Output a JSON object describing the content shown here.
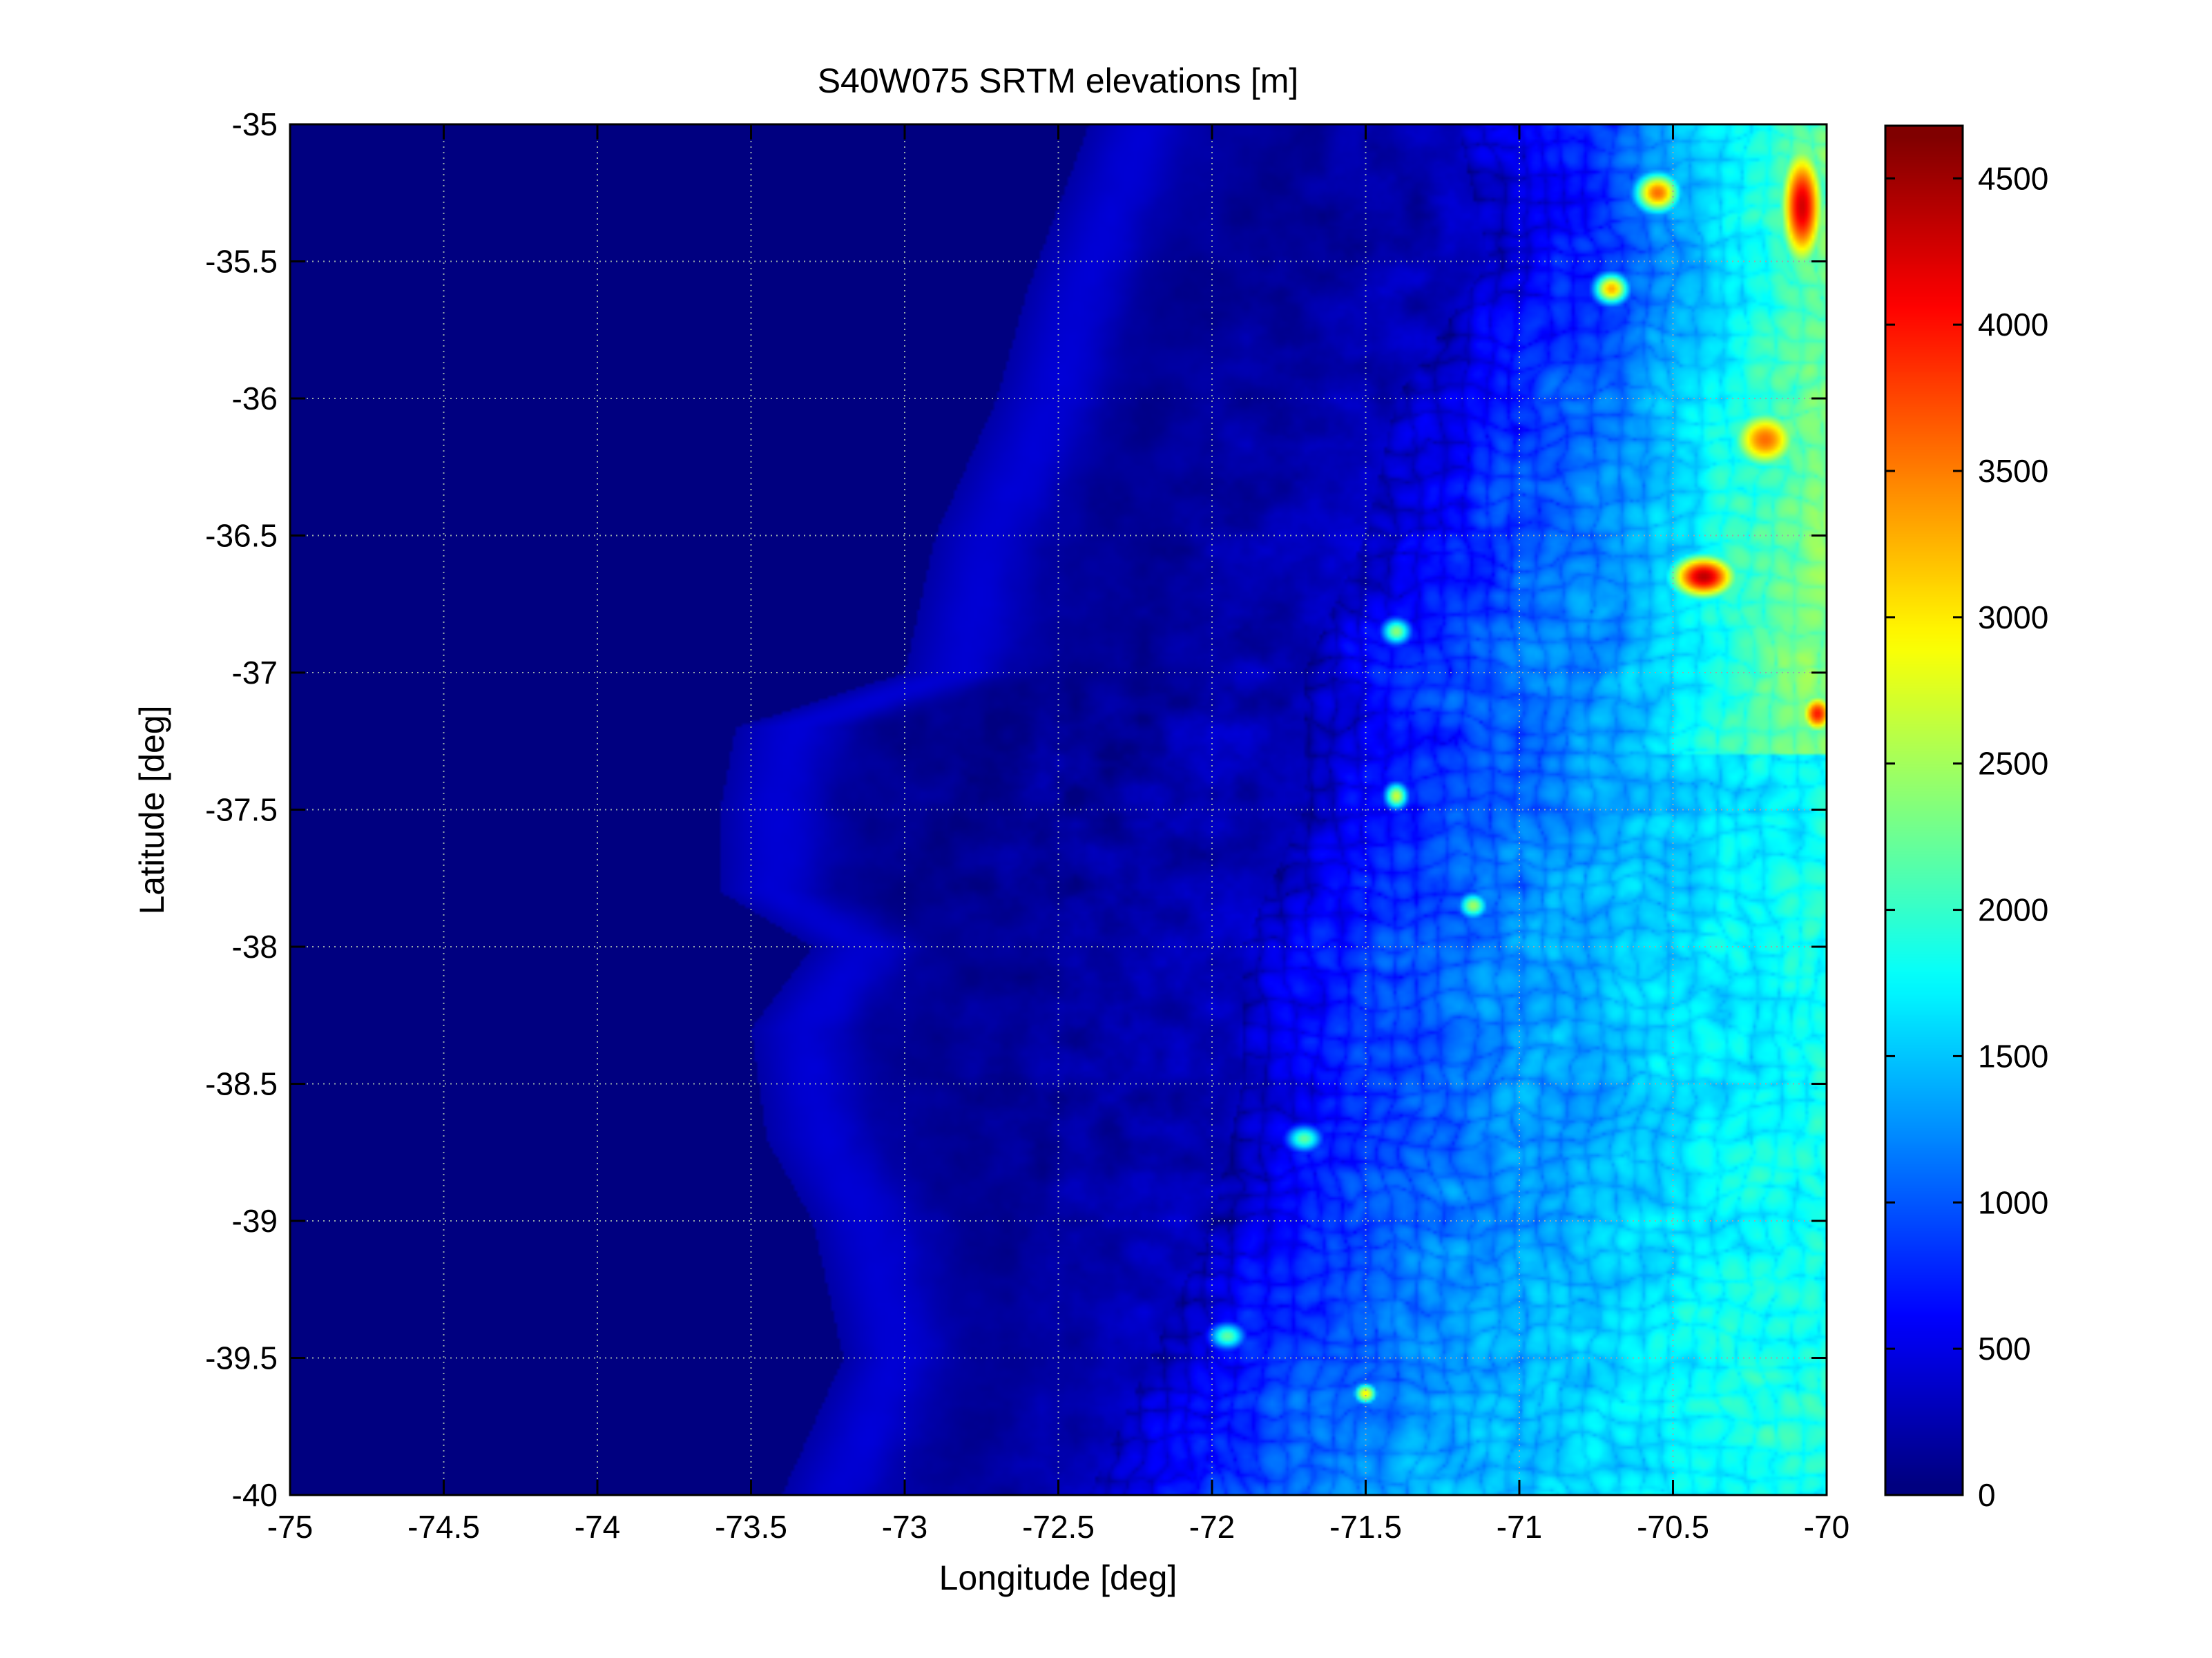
{
  "chart_data": {
    "type": "heatmap",
    "title": "S40W075 SRTM elevations [m]",
    "xlabel": "Longitude [deg]",
    "ylabel": "Latitude [deg]",
    "xlim": [
      -75,
      -70
    ],
    "ylim": [
      -40,
      -35
    ],
    "xticks": [
      -75,
      -74.5,
      -74,
      -73.5,
      -73,
      -72.5,
      -72,
      -71.5,
      -71,
      -70.5,
      -70
    ],
    "xtick_labels": [
      "-75",
      "-74.5",
      "-74",
      "-73.5",
      "-73",
      "-72.5",
      "-72",
      "-71.5",
      "-71",
      "-70.5",
      "-70"
    ],
    "yticks": [
      -35,
      -35.5,
      -36,
      -36.5,
      -37,
      -37.5,
      -38,
      -38.5,
      -39,
      -39.5,
      -40
    ],
    "ytick_labels": [
      "-35",
      "-35.5",
      "-36",
      "-36.5",
      "-37",
      "-37.5",
      "-38",
      "-38.5",
      "-39",
      "-39.5",
      "-40"
    ],
    "grid": true,
    "colormap": "jet",
    "colorbar": {
      "clim": [
        0,
        4680
      ],
      "ticks": [
        0,
        500,
        1000,
        1500,
        2000,
        2500,
        3000,
        3500,
        4000,
        4500
      ],
      "tick_labels": [
        "0",
        "500",
        "1000",
        "1500",
        "2000",
        "2500",
        "3000",
        "3500",
        "4000",
        "4500"
      ],
      "location": "right"
    },
    "coastline_lon_by_lat": [
      [
        -35.0,
        -72.4
      ],
      [
        -35.3,
        -72.5
      ],
      [
        -35.6,
        -72.6
      ],
      [
        -36.0,
        -72.7
      ],
      [
        -36.5,
        -72.9
      ],
      [
        -37.0,
        -73.0
      ],
      [
        -37.2,
        -73.55
      ],
      [
        -37.5,
        -73.6
      ],
      [
        -37.8,
        -73.6
      ],
      [
        -38.0,
        -73.3
      ],
      [
        -38.3,
        -73.5
      ],
      [
        -38.7,
        -73.45
      ],
      [
        -39.0,
        -73.3
      ],
      [
        -39.5,
        -73.2
      ],
      [
        -40.0,
        -73.4
      ]
    ],
    "andes_front_lon_by_lat": [
      [
        -35.0,
        -71.2
      ],
      [
        -35.5,
        -71.1
      ],
      [
        -36.0,
        -71.4
      ],
      [
        -36.5,
        -71.5
      ],
      [
        -37.0,
        -71.7
      ],
      [
        -37.5,
        -71.7
      ],
      [
        -38.0,
        -71.9
      ],
      [
        -38.5,
        -71.9
      ],
      [
        -39.0,
        -72.0
      ],
      [
        -39.5,
        -72.2
      ],
      [
        -40.0,
        -72.4
      ]
    ],
    "peaks": [
      {
        "lon": -70.4,
        "lat": -36.65,
        "elev": 4400,
        "rx": 0.12,
        "ry": 0.09
      },
      {
        "lon": -70.08,
        "lat": -35.3,
        "elev": 4300,
        "rx": 0.08,
        "ry": 0.25
      },
      {
        "lon": -70.03,
        "lat": -37.15,
        "elev": 4000,
        "rx": 0.06,
        "ry": 0.08
      },
      {
        "lon": -70.2,
        "lat": -36.15,
        "elev": 3600,
        "rx": 0.12,
        "ry": 0.12
      },
      {
        "lon": -70.55,
        "lat": -35.25,
        "elev": 3600,
        "rx": 0.08,
        "ry": 0.08
      },
      {
        "lon": -70.7,
        "lat": -35.6,
        "elev": 3300,
        "rx": 0.06,
        "ry": 0.06
      },
      {
        "lon": -71.5,
        "lat": -39.63,
        "elev": 3000,
        "rx": 0.04,
        "ry": 0.04
      },
      {
        "lon": -71.4,
        "lat": -37.45,
        "elev": 2700,
        "rx": 0.04,
        "ry": 0.05
      },
      {
        "lon": -71.15,
        "lat": -37.85,
        "elev": 2500,
        "rx": 0.05,
        "ry": 0.05
      },
      {
        "lon": -71.7,
        "lat": -38.7,
        "elev": 2200,
        "rx": 0.06,
        "ry": 0.05
      },
      {
        "lon": -71.95,
        "lat": -39.42,
        "elev": 2200,
        "rx": 0.06,
        "ry": 0.05
      },
      {
        "lon": -71.4,
        "lat": -36.85,
        "elev": 2400,
        "rx": 0.05,
        "ry": 0.05
      }
    ]
  }
}
